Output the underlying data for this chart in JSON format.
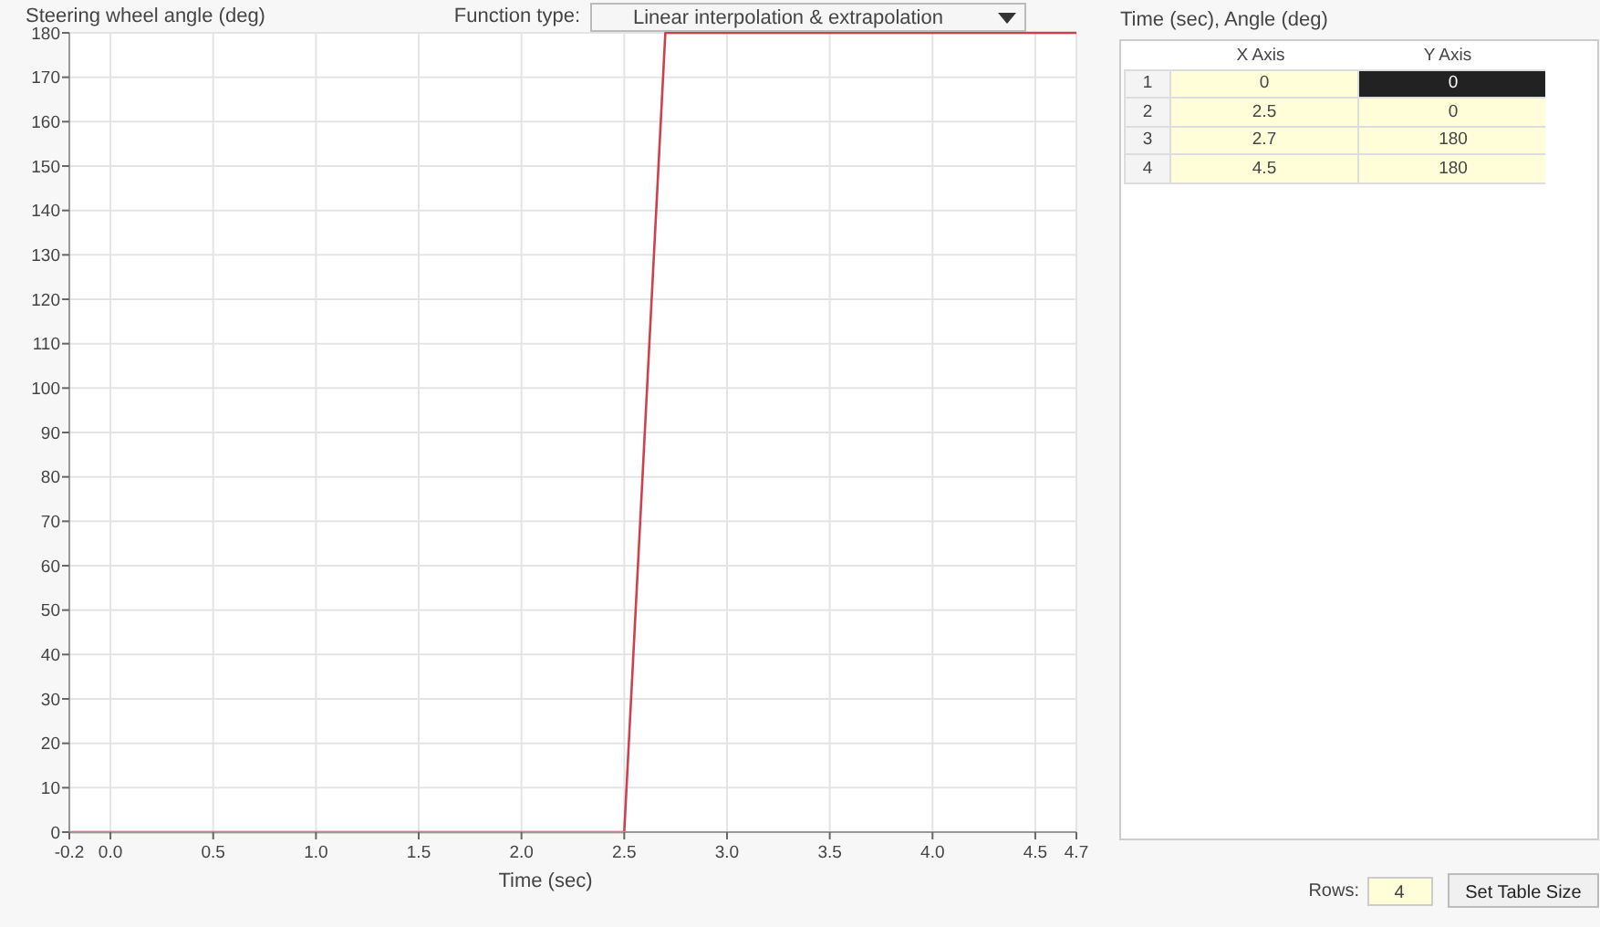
{
  "chart_data": {
    "type": "line",
    "ylabel": "Steering wheel angle (deg)",
    "xlabel": "Time (sec)",
    "annotations": [
      "Function type:",
      "Linear interpolation & extrapolation",
      "Time (sec), Angle (deg)",
      "X Axis",
      "Y Axis",
      "1",
      "0",
      "0",
      "2",
      "2.5",
      "0",
      "3",
      "2.7",
      "180",
      "4",
      "4.5",
      "180",
      "Rows:",
      "4",
      "Set Table Size"
    ],
    "x": [
      -0.2,
      2.5,
      2.7,
      4.7
    ],
    "series": [
      {
        "color": "#d0404c",
        "values": [
          0,
          0,
          180,
          180
        ]
      }
    ],
    "xlim": [
      -0.2,
      4.7
    ],
    "ylim": [
      0,
      180
    ],
    "xticks": [
      -0.2,
      {
        "value": 0,
        "label": "0.0"
      },
      0.5,
      {
        "value": 1,
        "label": "1.0"
      },
      1.5,
      {
        "value": 2,
        "label": "2.0"
      },
      2.5,
      {
        "value": 3,
        "label": "3.0"
      },
      3.5,
      {
        "value": 4,
        "label": "4.0"
      },
      4.5,
      4.7
    ],
    "yticks": [
      0,
      10,
      20,
      30,
      40,
      50,
      60,
      70,
      80,
      90,
      100,
      110,
      120,
      130,
      140,
      150,
      160,
      170,
      180
    ],
    "grid": true,
    "marker": "none",
    "line_style": "solid"
  }
}
